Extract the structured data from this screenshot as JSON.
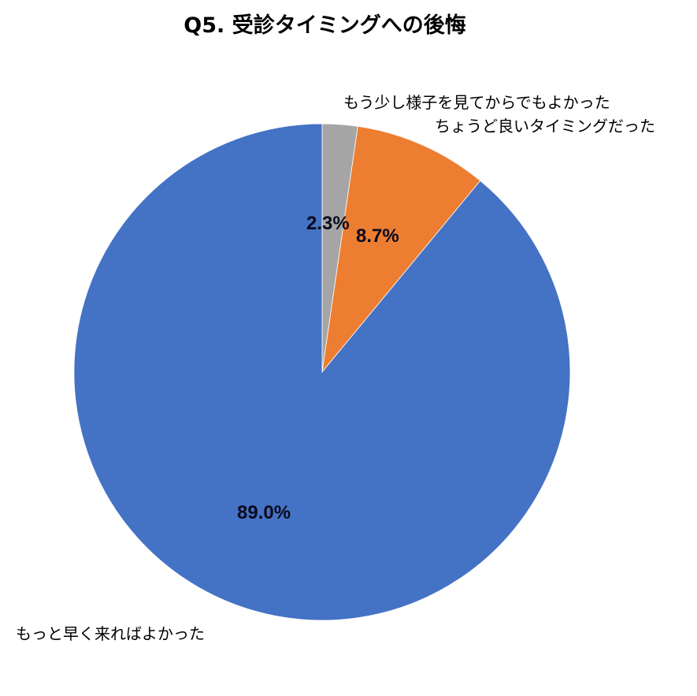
{
  "chart_data": {
    "type": "pie",
    "title": "Q5. 受診タイミングへの後悔",
    "start_angle": "12 o'clock, clockwise",
    "categories": [
      "もう少し様子を見てからでもよかった",
      "ちょうど良いタイミングだった",
      "もっと早く来ればよかった"
    ],
    "values": [
      2.3,
      8.7,
      89.0
    ],
    "value_labels": [
      "2.3%",
      "8.7%",
      "89.0%"
    ],
    "colors": [
      "#a5a5a5",
      "#ed7d31",
      "#4472c4"
    ],
    "legend": "none (category labels placed outside slices)"
  },
  "title": "Q5. 受診タイミングへの後悔",
  "labels": {
    "gray": "もう少し様子を見てからでもよかった",
    "orange": "ちょうど良いタイミングだった",
    "blue": "もっと早く来ればよかった"
  },
  "values": {
    "gray": "2.3%",
    "orange": "8.7%",
    "blue": "89.0%"
  }
}
